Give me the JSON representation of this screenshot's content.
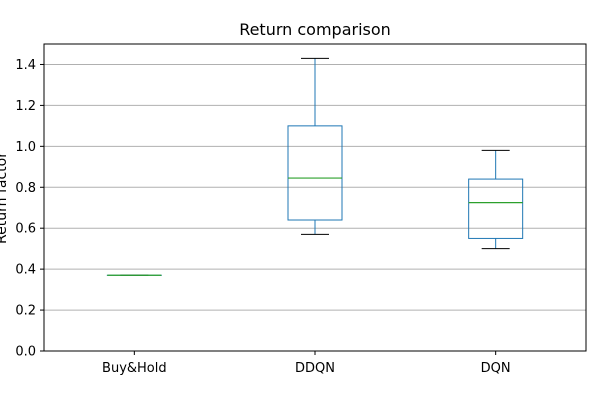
{
  "chart_data": {
    "type": "box",
    "title": "Return comparison",
    "xlabel": "",
    "ylabel": "Return factor",
    "ylim": [
      0,
      1.5
    ],
    "yticks": [
      0.0,
      0.2,
      0.4,
      0.6,
      0.8,
      1.0,
      1.2,
      1.4
    ],
    "ytick_labels": [
      "0.0",
      "0.2",
      "0.4",
      "0.6",
      "0.8",
      "1.0",
      "1.2",
      "1.4"
    ],
    "grid": "y",
    "categories": [
      "Buy&Hold",
      "DDQN",
      "DQN"
    ],
    "boxes": [
      {
        "label": "Buy&Hold",
        "whisker_low": 0.37,
        "q1": 0.37,
        "median": 0.37,
        "q3": 0.37,
        "whisker_high": 0.37
      },
      {
        "label": "DDQN",
        "whisker_low": 0.57,
        "q1": 0.64,
        "median": 0.845,
        "q3": 1.1,
        "whisker_high": 1.43
      },
      {
        "label": "DQN",
        "whisker_low": 0.5,
        "q1": 0.55,
        "median": 0.725,
        "q3": 0.84,
        "whisker_high": 0.98
      }
    ],
    "colors": {
      "box": "#1f77b4",
      "median": "#2ca02c",
      "whisker_cap": "#000000",
      "grid": "#b0b0b0"
    }
  }
}
